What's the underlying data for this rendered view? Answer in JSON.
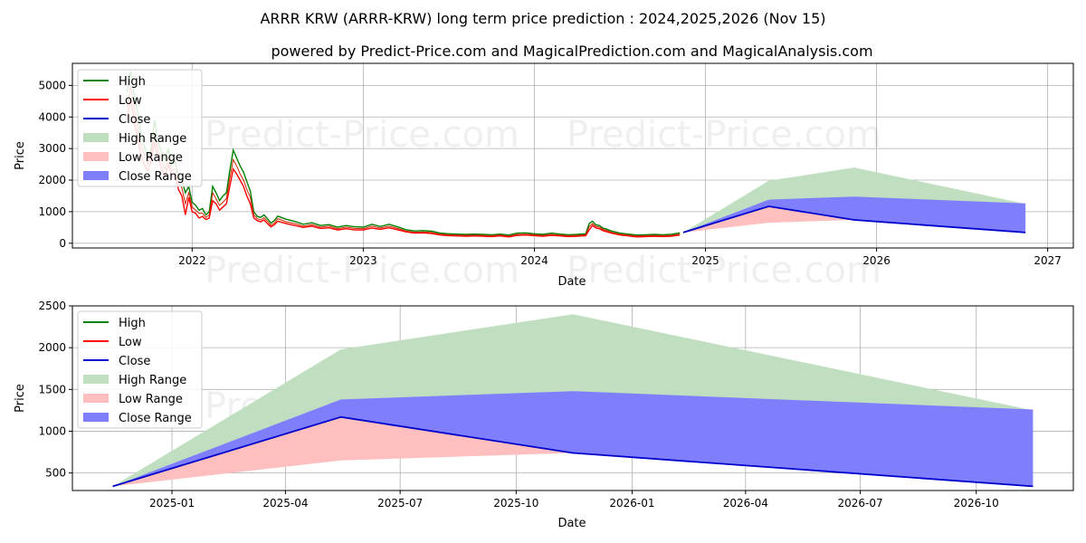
{
  "title": "ARRR KRW (ARRR-KRW) long term price prediction : 2024,2025,2026 (Nov 15)",
  "subtitle": "powered by Predict-Price.com and MagicalPrediction.com and MagicalAnalysis.com",
  "watermark": "Predict-Price.com",
  "legend": {
    "high": "High",
    "low": "Low",
    "close": "Close",
    "high_range": "High Range",
    "low_range": "Low Range",
    "close_range": "Close Range"
  },
  "colors": {
    "high": "#008000",
    "low": "#ff0000",
    "close": "#0000cc",
    "high_range": "#c0dfc0",
    "low_range": "#ffbfbf",
    "close_range": "#7f7ffe",
    "grid": "#b0b0b0"
  },
  "chart_data": [
    {
      "type": "line",
      "title": "Historical and predicted price",
      "xlabel": "Date",
      "ylabel": "Price",
      "xlim": [
        2021.3,
        2027.15
      ],
      "ylim": [
        -150,
        5700
      ],
      "x_ticks": [
        2022,
        2023,
        2024,
        2025,
        2026,
        2027
      ],
      "x_tick_labels": [
        "2022",
        "2023",
        "2024",
        "2025",
        "2026",
        "2027"
      ],
      "y_ticks": [
        0,
        1000,
        2000,
        3000,
        4000,
        5000
      ],
      "y_tick_labels": [
        "0",
        "1000",
        "2000",
        "3000",
        "4000",
        "5000"
      ],
      "history": {
        "x": [
          2021.62,
          2021.64,
          2021.66,
          2021.68,
          2021.7,
          2021.72,
          2021.74,
          2021.76,
          2021.78,
          2021.8,
          2021.82,
          2021.84,
          2021.86,
          2021.88,
          2021.9,
          2021.92,
          2021.94,
          2021.96,
          2021.98,
          2022.0,
          2022.02,
          2022.04,
          2022.06,
          2022.08,
          2022.1,
          2022.12,
          2022.14,
          2022.16,
          2022.18,
          2022.2,
          2022.22,
          2022.24,
          2022.26,
          2022.28,
          2022.3,
          2022.32,
          2022.34,
          2022.36,
          2022.38,
          2022.4,
          2022.42,
          2022.44,
          2022.46,
          2022.48,
          2022.5,
          2022.55,
          2022.6,
          2022.65,
          2022.7,
          2022.75,
          2022.8,
          2022.85,
          2022.9,
          2022.95,
          2023.0,
          2023.05,
          2023.1,
          2023.15,
          2023.2,
          2023.25,
          2023.3,
          2023.35,
          2023.4,
          2023.45,
          2023.5,
          2023.55,
          2023.6,
          2023.65,
          2023.7,
          2023.75,
          2023.8,
          2023.85,
          2023.9,
          2023.95,
          2024.0,
          2024.05,
          2024.1,
          2024.15,
          2024.2,
          2024.25,
          2024.3,
          2024.32,
          2024.34,
          2024.36,
          2024.38,
          2024.4,
          2024.42,
          2024.45,
          2024.5,
          2024.55,
          2024.6,
          2024.65,
          2024.7,
          2024.75,
          2024.8,
          2024.85
        ],
        "high": [
          4800,
          5450,
          4700,
          4200,
          3500,
          3100,
          2700,
          3000,
          3900,
          3200,
          2900,
          2600,
          3000,
          2500,
          2600,
          2100,
          2000,
          1600,
          1800,
          1300,
          1200,
          1050,
          1100,
          900,
          1000,
          1800,
          1600,
          1350,
          1500,
          1600,
          2300,
          2950,
          2700,
          2450,
          2250,
          1950,
          1650,
          1000,
          850,
          820,
          900,
          780,
          640,
          720,
          860,
          760,
          690,
          600,
          650,
          560,
          590,
          510,
          560,
          520,
          510,
          600,
          530,
          600,
          520,
          430,
          390,
          400,
          380,
          320,
          300,
          290,
          280,
          290,
          280,
          270,
          290,
          260,
          320,
          330,
          300,
          280,
          320,
          290,
          270,
          280,
          300,
          620,
          700,
          580,
          560,
          480,
          450,
          390,
          320,
          290,
          260,
          270,
          280,
          270,
          280,
          330
        ],
        "low": [
          3900,
          4600,
          3900,
          3400,
          2800,
          2500,
          2300,
          2600,
          3200,
          2700,
          2400,
          2100,
          2500,
          2100,
          2150,
          1700,
          1500,
          900,
          1450,
          1000,
          950,
          800,
          850,
          750,
          800,
          1350,
          1250,
          1050,
          1150,
          1250,
          1800,
          2350,
          2200,
          2000,
          1800,
          1500,
          1250,
          800,
          720,
          680,
          740,
          620,
          520,
          580,
          700,
          620,
          560,
          500,
          540,
          470,
          490,
          420,
          460,
          420,
          420,
          480,
          440,
          490,
          430,
          360,
          320,
          330,
          310,
          260,
          240,
          230,
          220,
          230,
          220,
          210,
          230,
          200,
          250,
          260,
          240,
          220,
          250,
          230,
          210,
          220,
          240,
          420,
          560,
          480,
          460,
          400,
          370,
          320,
          260,
          230,
          200,
          210,
          220,
          210,
          220,
          260
        ],
        "close": [
          4300,
          5000,
          4300,
          3800,
          3150,
          2800,
          2500,
          2800,
          3550,
          2950,
          2650,
          2350,
          2750,
          2300,
          2350,
          1900,
          1750,
          1250,
          1600,
          1150,
          1050,
          950,
          950,
          820,
          900,
          1600,
          1400,
          1200,
          1300,
          1420,
          2050,
          2650,
          2450,
          2200,
          2000,
          1700,
          1450,
          900,
          780,
          740,
          810,
          700,
          570,
          640,
          780,
          680,
          620,
          540,
          590,
          510,
          540,
          460,
          510,
          470,
          460,
          540,
          480,
          540,
          470,
          390,
          350,
          360,
          340,
          290,
          270,
          260,
          250,
          260,
          250,
          240,
          260,
          230,
          280,
          290,
          270,
          250,
          280,
          260,
          240,
          250,
          270,
          520,
          620,
          530,
          510,
          440,
          410,
          350,
          290,
          260,
          230,
          240,
          250,
          240,
          250,
          290
        ]
      },
      "prediction": {
        "dates": [
          "2024-11-15",
          "2025-05-15",
          "2025-11-15",
          "2026-11-15"
        ],
        "x": [
          2024.87,
          2025.37,
          2025.87,
          2026.87
        ],
        "high_range_top": [
          340,
          1980,
          2400,
          1250
        ],
        "low_range_top": [
          340,
          650,
          740,
          340
        ],
        "close_range_top": [
          340,
          1380,
          1480,
          1260
        ],
        "close": [
          340,
          1170,
          740,
          340
        ]
      }
    },
    {
      "type": "area",
      "title": "Prediction detail",
      "xlabel": "Date",
      "ylabel": "Price",
      "xlim": [
        "2024-10-14",
        "2026-12-17"
      ],
      "ylim": [
        290,
        2500
      ],
      "x_ticks": [
        "2025-01-01",
        "2025-04-01",
        "2025-07-01",
        "2025-10-01",
        "2026-01-01",
        "2026-04-01",
        "2026-07-01",
        "2026-10-01"
      ],
      "x_tick_labels": [
        "2025-01",
        "2025-04",
        "2025-07",
        "2025-10",
        "2026-01",
        "2026-04",
        "2026-07",
        "2026-10"
      ],
      "y_ticks": [
        500,
        1000,
        1500,
        2000,
        2500
      ],
      "y_tick_labels": [
        "500",
        "1000",
        "1500",
        "2000",
        "2500"
      ],
      "dates": [
        "2024-11-15",
        "2025-05-15",
        "2025-11-15",
        "2026-11-15"
      ],
      "high_range_top": [
        340,
        1980,
        2400,
        1250
      ],
      "low_range_top": [
        340,
        650,
        740,
        340
      ],
      "close_range_top": [
        340,
        1380,
        1480,
        1260
      ],
      "close": [
        340,
        1170,
        740,
        340
      ]
    }
  ]
}
